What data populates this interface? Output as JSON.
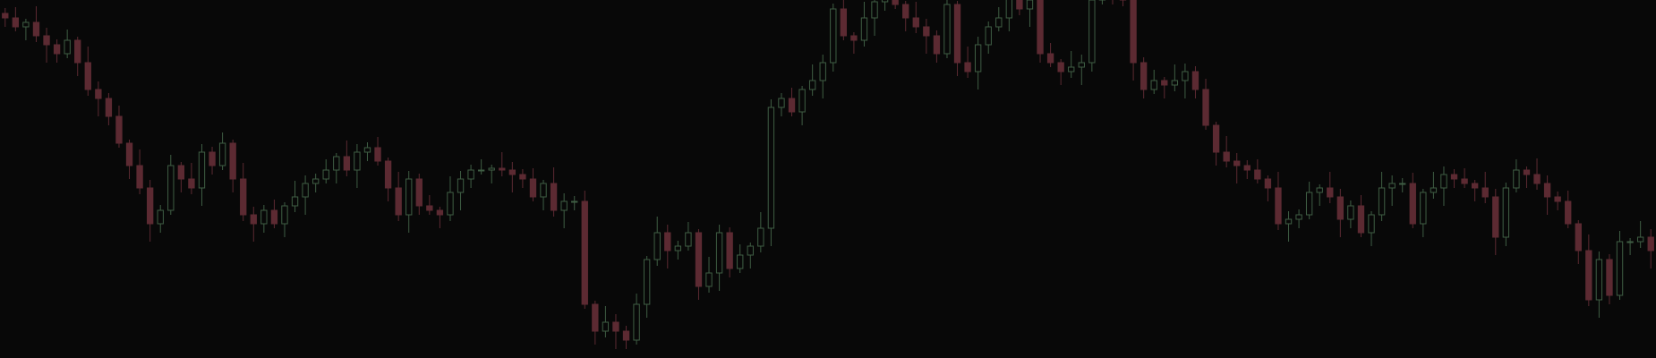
{
  "chart_data": {
    "type": "candlestick",
    "ylim": [
      0,
      400
    ],
    "background": "#080808",
    "up_color": "#3f5e44",
    "down_color": "#5c2a32",
    "open": [
      385,
      380,
      370,
      375,
      360,
      350,
      340,
      355,
      330,
      300,
      290,
      270,
      240,
      215,
      190,
      150,
      165,
      215,
      200,
      190,
      230,
      215,
      240,
      200,
      160,
      150,
      165,
      150,
      170,
      180,
      195,
      200,
      210,
      225,
      210,
      230,
      235,
      220,
      190,
      160,
      200,
      170,
      165,
      160,
      185,
      200,
      210,
      210,
      212,
      210,
      205,
      200,
      180,
      195,
      165,
      175,
      175,
      60,
      30,
      40,
      30,
      20,
      60,
      110,
      140,
      120,
      125,
      140,
      80,
      95,
      140,
      100,
      115,
      125,
      145,
      280,
      290,
      275,
      300,
      310,
      330,
      390,
      360,
      355,
      380,
      398,
      405,
      395,
      380,
      370,
      360,
      340,
      395,
      330,
      320,
      350,
      370,
      380,
      410,
      390,
      400,
      340,
      330,
      320,
      325,
      330,
      400,
      420,
      410,
      400,
      330,
      300,
      310,
      305,
      310,
      320,
      300,
      260,
      230,
      220,
      215,
      210,
      200,
      190,
      150,
      155,
      160,
      185,
      190,
      180,
      155,
      170,
      140,
      160,
      190,
      195,
      195,
      150,
      185,
      190,
      205,
      200,
      195,
      190,
      180,
      135,
      190,
      210,
      205,
      195,
      180,
      175,
      150,
      120,
      65,
      110,
      70,
      130,
      130,
      135
    ],
    "high": [
      391,
      392,
      379,
      393,
      369,
      356,
      367,
      359,
      348,
      309,
      296,
      282,
      244,
      233,
      199,
      171,
      227,
      219,
      218,
      239,
      236,
      252,
      244,
      218,
      169,
      171,
      177,
      174,
      198,
      204,
      206,
      222,
      229,
      243,
      239,
      241,
      247,
      224,
      208,
      209,
      206,
      182,
      169,
      203,
      209,
      216,
      222,
      216,
      230,
      219,
      211,
      212,
      199,
      213,
      184,
      181,
      187,
      64,
      58,
      49,
      36,
      72,
      114,
      158,
      149,
      131,
      152,
      144,
      113,
      149,
      146,
      127,
      129,
      163,
      289,
      296,
      302,
      304,
      328,
      339,
      396,
      402,
      364,
      398,
      407,
      411,
      417,
      399,
      398,
      379,
      366,
      407,
      399,
      348,
      359,
      376,
      392,
      414,
      428,
      409,
      406,
      352,
      334,
      343,
      339,
      406,
      432,
      424,
      428,
      409,
      336,
      322,
      314,
      328,
      329,
      326,
      312,
      264,
      248,
      229,
      221,
      222,
      204,
      208,
      164,
      166,
      197,
      194,
      208,
      189,
      176,
      182,
      164,
      208,
      204,
      201,
      207,
      189,
      208,
      214,
      211,
      212,
      199,
      208,
      189,
      196,
      222,
      214,
      223,
      204,
      186,
      187,
      154,
      138,
      119,
      116,
      142,
      134,
      153,
      144
    ],
    "low": [
      370,
      365,
      355,
      353,
      330,
      330,
      335,
      315,
      293,
      270,
      260,
      235,
      200,
      183,
      130,
      140,
      160,
      185,
      183,
      170,
      205,
      210,
      185,
      153,
      130,
      140,
      145,
      135,
      163,
      160,
      185,
      195,
      195,
      203,
      190,
      220,
      215,
      175,
      153,
      140,
      160,
      160,
      145,
      153,
      165,
      190,
      205,
      195,
      203,
      185,
      190,
      175,
      165,
      158,
      145,
      165,
      55,
      15,
      23,
      10,
      10,
      15,
      45,
      103,
      100,
      110,
      120,
      65,
      73,
      75,
      90,
      95,
      100,
      118,
      125,
      270,
      270,
      260,
      293,
      290,
      320,
      355,
      340,
      348,
      360,
      388,
      390,
      365,
      363,
      340,
      330,
      335,
      315,
      313,
      300,
      340,
      365,
      365,
      383,
      370,
      330,
      325,
      305,
      313,
      305,
      320,
      395,
      395,
      393,
      310,
      290,
      295,
      290,
      298,
      290,
      290,
      255,
      215,
      213,
      195,
      200,
      195,
      175,
      143,
      130,
      145,
      155,
      170,
      173,
      135,
      145,
      135,
      125,
      153,
      170,
      185,
      145,
      135,
      178,
      170,
      190,
      190,
      175,
      173,
      115,
      125,
      185,
      190,
      188,
      160,
      165,
      145,
      105,
      58,
      45,
      60,
      65,
      115,
      123,
      100
    ],
    "close": [
      380,
      370,
      375,
      360,
      350,
      340,
      355,
      330,
      300,
      290,
      270,
      240,
      215,
      190,
      150,
      165,
      215,
      200,
      190,
      230,
      215,
      240,
      200,
      160,
      150,
      165,
      150,
      170,
      180,
      195,
      200,
      210,
      225,
      210,
      230,
      235,
      220,
      190,
      160,
      200,
      170,
      165,
      160,
      185,
      200,
      210,
      210,
      212,
      210,
      205,
      200,
      180,
      195,
      165,
      175,
      175,
      60,
      30,
      40,
      30,
      20,
      60,
      110,
      140,
      120,
      125,
      140,
      80,
      95,
      140,
      100,
      115,
      125,
      145,
      280,
      290,
      275,
      300,
      310,
      330,
      390,
      360,
      355,
      380,
      398,
      405,
      395,
      380,
      370,
      360,
      340,
      395,
      330,
      320,
      350,
      370,
      380,
      410,
      390,
      400,
      340,
      330,
      320,
      325,
      330,
      400,
      420,
      410,
      400,
      330,
      300,
      310,
      305,
      310,
      320,
      300,
      260,
      230,
      220,
      215,
      210,
      200,
      190,
      150,
      155,
      160,
      185,
      190,
      180,
      155,
      170,
      140,
      160,
      190,
      195,
      195,
      150,
      185,
      190,
      205,
      200,
      195,
      190,
      180,
      135,
      190,
      210,
      205,
      195,
      180,
      175,
      150,
      120,
      65,
      110,
      70,
      130,
      130,
      135,
      120
    ]
  }
}
